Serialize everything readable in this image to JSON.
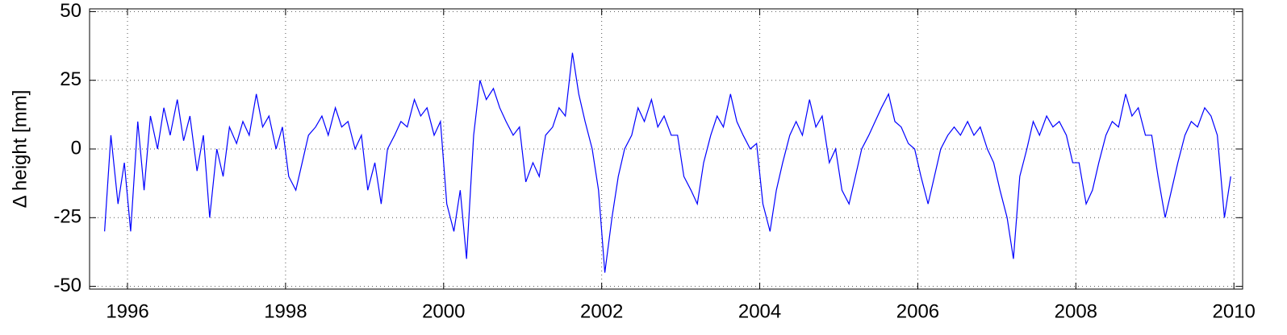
{
  "chart_data": {
    "type": "line",
    "y_label": "Δ height [mm]",
    "x": [
      1995.71,
      1995.79,
      1995.88,
      1995.96,
      1996.04,
      1996.13,
      1996.21,
      1996.29,
      1996.38,
      1996.46,
      1996.54,
      1996.63,
      1996.71,
      1996.79,
      1996.88,
      1996.96,
      1997.04,
      1997.13,
      1997.21,
      1997.29,
      1997.38,
      1997.46,
      1997.54,
      1997.63,
      1997.71,
      1997.79,
      1997.88,
      1997.96,
      1998.04,
      1998.13,
      1998.21,
      1998.29,
      1998.38,
      1998.46,
      1998.54,
      1998.63,
      1998.71,
      1998.79,
      1998.88,
      1998.96,
      1999.04,
      1999.13,
      1999.21,
      1999.29,
      1999.38,
      1999.46,
      1999.54,
      1999.63,
      1999.71,
      1999.79,
      1999.88,
      1999.96,
      2000.04,
      2000.13,
      2000.21,
      2000.29,
      2000.38,
      2000.46,
      2000.54,
      2000.63,
      2000.71,
      2000.79,
      2000.88,
      2000.96,
      2001.04,
      2001.13,
      2001.21,
      2001.29,
      2001.38,
      2001.46,
      2001.54,
      2001.63,
      2001.71,
      2001.79,
      2001.88,
      2001.96,
      2002.04,
      2002.13,
      2002.21,
      2002.29,
      2002.38,
      2002.46,
      2002.54,
      2002.63,
      2002.71,
      2002.79,
      2002.88,
      2002.96,
      2003.04,
      2003.13,
      2003.21,
      2003.29,
      2003.38,
      2003.46,
      2003.54,
      2003.63,
      2003.71,
      2003.79,
      2003.88,
      2003.96,
      2004.04,
      2004.13,
      2004.21,
      2004.29,
      2004.38,
      2004.46,
      2004.54,
      2004.63,
      2004.71,
      2004.79,
      2004.88,
      2004.96,
      2005.04,
      2005.13,
      2005.21,
      2005.29,
      2005.38,
      2005.46,
      2005.54,
      2005.63,
      2005.71,
      2005.79,
      2005.88,
      2005.96,
      2006.04,
      2006.13,
      2006.21,
      2006.29,
      2006.38,
      2006.46,
      2006.54,
      2006.63,
      2006.71,
      2006.79,
      2006.88,
      2006.96,
      2007.04,
      2007.13,
      2007.21,
      2007.29,
      2007.38,
      2007.46,
      2007.54,
      2007.63,
      2007.71,
      2007.79,
      2007.88,
      2007.96,
      2008.04,
      2008.13,
      2008.21,
      2008.29,
      2008.38,
      2008.46,
      2008.54,
      2008.63,
      2008.71,
      2008.79,
      2008.88,
      2008.96,
      2009.04,
      2009.13,
      2009.21,
      2009.29,
      2009.38,
      2009.46,
      2009.54,
      2009.63,
      2009.71,
      2009.79,
      2009.88,
      2009.96
    ],
    "series": [
      {
        "color": "#0000ff",
        "values": [
          -30,
          5,
          -20,
          -5,
          -30,
          10,
          -15,
          12,
          0,
          15,
          5,
          18,
          3,
          12,
          -8,
          5,
          -25,
          0,
          -10,
          8,
          2,
          10,
          5,
          20,
          8,
          12,
          0,
          8,
          -10,
          -15,
          -5,
          5,
          8,
          12,
          5,
          15,
          8,
          10,
          0,
          5,
          -15,
          -5,
          -20,
          0,
          5,
          10,
          8,
          18,
          12,
          15,
          5,
          10,
          -20,
          -30,
          -15,
          -40,
          5,
          25,
          18,
          22,
          15,
          10,
          5,
          8,
          -12,
          -5,
          -10,
          5,
          8,
          15,
          12,
          35,
          20,
          10,
          0,
          -15,
          -45,
          -25,
          -10,
          0,
          5,
          15,
          10,
          18,
          8,
          12,
          5,
          5,
          -10,
          -15,
          -20,
          -5,
          5,
          12,
          8,
          20,
          10,
          5,
          0,
          2,
          -20,
          -30,
          -15,
          -5,
          5,
          10,
          5,
          18,
          8,
          12,
          -5,
          0,
          -15,
          -20,
          -10,
          0,
          5,
          10,
          15,
          20,
          10,
          8,
          2,
          0,
          -10,
          -20,
          -10,
          0,
          5,
          8,
          5,
          10,
          5,
          8,
          0,
          -5,
          -15,
          -25,
          -40,
          -10,
          0,
          10,
          5,
          12,
          8,
          10,
          5,
          -5,
          -5,
          -20,
          -15,
          -5,
          5,
          10,
          8,
          20,
          12,
          15,
          5,
          5,
          -10,
          -25,
          -15,
          -5,
          5,
          10,
          8,
          15,
          12,
          5,
          -25,
          -10
        ]
      }
    ],
    "xlim": [
      1995.52,
      2010.11
    ],
    "xticks": [
      1996,
      1998,
      2000,
      2002,
      2004,
      2006,
      2008,
      2010
    ],
    "ylim": [
      -51,
      51
    ],
    "yticks": [
      -50,
      -25,
      0,
      25,
      50
    ],
    "grid": true
  }
}
